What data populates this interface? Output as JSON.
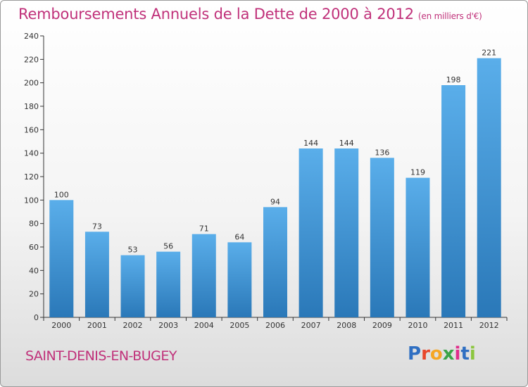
{
  "header": {
    "title": "Remboursements Annuels de la Dette de 2000 à 2012",
    "unit": "(en milliers d'€)"
  },
  "footer": {
    "commune": "SAINT-DENIS-EN-BUGEY",
    "logo_text": "Proxiti",
    "logo_colors": [
      "#2f6fc2",
      "#e8462a",
      "#f5a623",
      "#3aa447",
      "#e02d8b",
      "#2f6fc2",
      "#8cc63f"
    ]
  },
  "colors": {
    "bar_light": "#5aaeea",
    "bar_dark": "#2a78b8",
    "accent": "#c0317a",
    "axis": "#333333"
  },
  "chart_data": {
    "type": "bar",
    "categories": [
      "2000",
      "2001",
      "2002",
      "2003",
      "2004",
      "2005",
      "2006",
      "2007",
      "2008",
      "2009",
      "2010",
      "2011",
      "2012"
    ],
    "values": [
      100,
      73,
      53,
      56,
      71,
      64,
      94,
      144,
      144,
      136,
      119,
      198,
      221
    ],
    "ylim": [
      0,
      240
    ],
    "yticks": [
      0,
      20,
      40,
      60,
      80,
      100,
      120,
      140,
      160,
      180,
      200,
      220,
      240
    ],
    "grid": false,
    "title": "Remboursements Annuels de la Dette de 2000 à 2012",
    "xlabel": "",
    "ylabel": ""
  }
}
